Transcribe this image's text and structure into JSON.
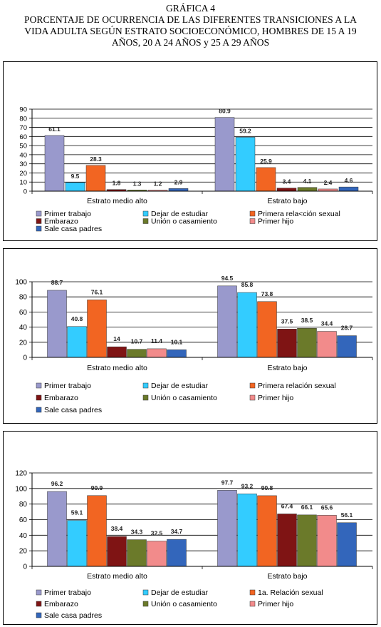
{
  "title": {
    "line1": "GRÁFICA 4",
    "line2": "PORCENTAJE DE OCURRENCIA DE LAS DIFERENTES TRANSICIONES A LA",
    "line3": "VIDA ADULTA SEGÚN ESTRATO SOCIOECONÓMICO, HOMBRES  DE 15 A 19",
    "line4": "AÑOS, 20 A 24 AÑOS y 25 A 29 AÑOS"
  },
  "colors": [
    "#9999cc",
    "#33ccff",
    "#f26522",
    "#7f1414",
    "#6b7a2a",
    "#f28b8b",
    "#3366bb"
  ],
  "chart_data": [
    {
      "type": "bar",
      "categories": [
        "Estrato medio alto",
        "Estrato bajo"
      ],
      "ylim": [
        0,
        90
      ],
      "yticks": [
        0,
        10,
        20,
        30,
        40,
        50,
        60,
        70,
        80,
        90
      ],
      "grid": true,
      "legend_position": "bottom",
      "series": [
        {
          "name": "Primer trabajo",
          "values": [
            61.1,
            80.9
          ]
        },
        {
          "name": "Dejar de estudiar",
          "values": [
            9.5,
            59.2
          ]
        },
        {
          "name": "Primera rela<ción sexual",
          "values": [
            28.3,
            25.9
          ]
        },
        {
          "name": "Embarazo",
          "values": [
            1.8,
            3.4
          ]
        },
        {
          "name": "Unión o casamiento",
          "values": [
            1.3,
            4.1
          ]
        },
        {
          "name": "Primer hijo",
          "values": [
            1.2,
            2.4
          ]
        },
        {
          "name": "Sale casa padres",
          "values": [
            2.9,
            4.6
          ]
        }
      ]
    },
    {
      "type": "bar",
      "categories": [
        "Estrato medio alto",
        "Estrato bajo"
      ],
      "ylim": [
        0,
        100
      ],
      "yticks": [
        0,
        20,
        40,
        60,
        80,
        100
      ],
      "grid": true,
      "legend_position": "bottom",
      "series": [
        {
          "name": "Primer trabajo",
          "values": [
            88.7,
            94.5
          ]
        },
        {
          "name": "Dejar de estudiar",
          "values": [
            40.8,
            85.8
          ]
        },
        {
          "name": "Primera relación sexual",
          "values": [
            76.1,
            73.8
          ]
        },
        {
          "name": "Embarazo",
          "values": [
            14,
            37.5
          ]
        },
        {
          "name": "Unión o casamiento",
          "values": [
            10.7,
            38.5
          ]
        },
        {
          "name": "Primer hijo",
          "values": [
            11.4,
            34.4
          ]
        },
        {
          "name": "Sale casa padres",
          "values": [
            10.1,
            28.7
          ]
        }
      ]
    },
    {
      "type": "bar",
      "categories": [
        "Estrato medio alto",
        "Estrato bajo"
      ],
      "ylim": [
        0,
        120
      ],
      "yticks": [
        0,
        20,
        40,
        60,
        80,
        100,
        120
      ],
      "grid": true,
      "legend_position": "bottom",
      "series": [
        {
          "name": "Primer trabajo",
          "values": [
            96.2,
            97.7
          ]
        },
        {
          "name": "Dejar de estudiar",
          "values": [
            59.1,
            93.2
          ]
        },
        {
          "name": "1a. Relación sexual",
          "values": [
            90.9,
            90.8
          ]
        },
        {
          "name": "Embarazo",
          "values": [
            38.4,
            67.4
          ]
        },
        {
          "name": "Unión o casamiento",
          "values": [
            34.3,
            66.1
          ]
        },
        {
          "name": "Primer hijo",
          "values": [
            32.5,
            65.6
          ]
        },
        {
          "name": "Sale casa padres",
          "values": [
            34.7,
            56.1
          ]
        }
      ]
    }
  ]
}
